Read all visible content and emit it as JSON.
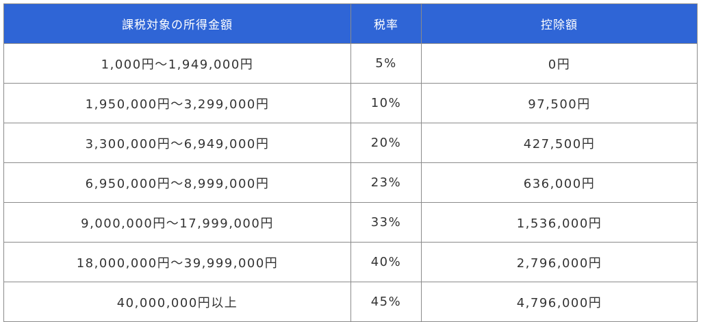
{
  "table": {
    "headers": [
      "課税対象の所得金額",
      "税率",
      "控除額"
    ],
    "rows": [
      [
        "1,000円〜1,949,000円",
        "5%",
        "0円"
      ],
      [
        "1,950,000円〜3,299,000円",
        "10%",
        "97,500円"
      ],
      [
        "3,300,000円〜6,949,000円",
        "20%",
        "427,500円"
      ],
      [
        "6,950,000円〜8,999,000円",
        "23%",
        "636,000円"
      ],
      [
        "9,000,000円〜17,999,000円",
        "33%",
        "1,536,000円"
      ],
      [
        "18,000,000円〜39,999,000円",
        "40%",
        "2,796,000円"
      ],
      [
        "40,000,000円以上",
        "45%",
        "4,796,000円"
      ]
    ]
  },
  "colors": {
    "header_bg": "#2f65d6",
    "header_text": "#ffffff",
    "border": "#8a8a8a",
    "cell_text": "#333333"
  }
}
